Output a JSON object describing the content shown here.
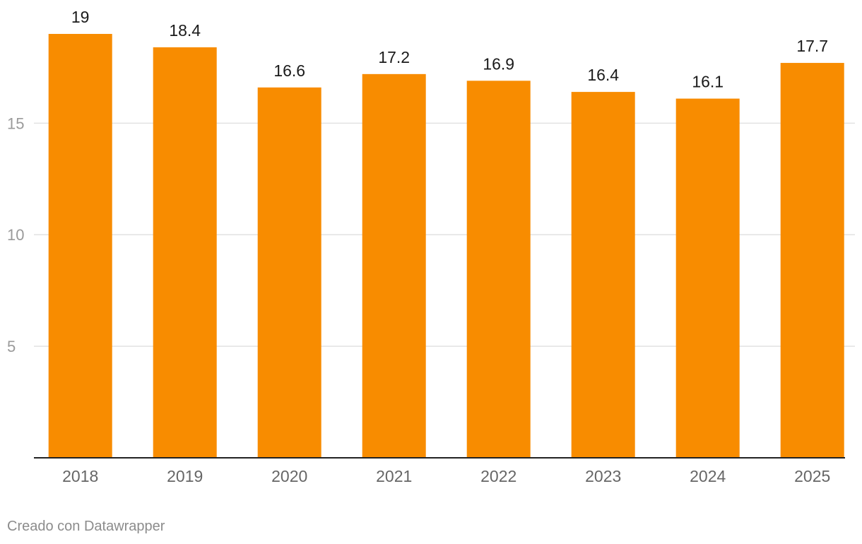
{
  "chart_data": {
    "type": "bar",
    "categories": [
      "2018",
      "2019",
      "2020",
      "2021",
      "2022",
      "2023",
      "2024",
      "2025"
    ],
    "values": [
      19,
      18.4,
      16.6,
      17.2,
      16.9,
      16.4,
      16.1,
      17.7
    ],
    "value_labels": [
      "19",
      "18.4",
      "16.6",
      "17.2",
      "16.9",
      "16.4",
      "16.1",
      "17.7"
    ],
    "title": "",
    "xlabel": "",
    "ylabel": "",
    "ylim": [
      0,
      19
    ],
    "yticks": [
      5,
      10,
      15
    ],
    "ytick_labels": [
      "5",
      "10",
      "15"
    ],
    "grid": true,
    "legend": "none",
    "bar_color": "#f88c00",
    "gridline_color": "#e2e2e2",
    "baseline_color": "#222222"
  },
  "footer": {
    "credit": "Creado con Datawrapper"
  }
}
